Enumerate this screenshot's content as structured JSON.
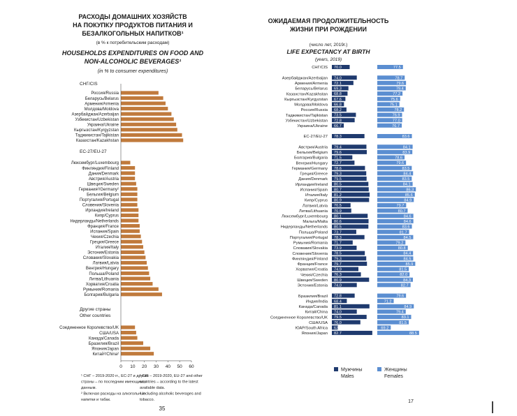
{
  "colors": {
    "food_bar": "#c07a3c",
    "male_bar": "#1f3a6e",
    "female_bar": "#5b8ed1",
    "text": "#1a1a1a",
    "grid": "#d8d8d8"
  },
  "left": {
    "title_ru": [
      "РАСХОДЫ ДОМАШНИХ ХОЗЯЙСТВ",
      "НА ПОКУПКУ ПРОДУКТОВ ПИТАНИЯ И",
      "БЕЗАЛКОГОЛЬНЫХ НАПИТКОВ¹"
    ],
    "subtitle_ru": "(в % к потребительским расходам)",
    "title_en": [
      "HOUSEHOLDS EXPENDITURES ON FOOD AND",
      "NON-ALCOHOLIC BEVERAGES¹"
    ],
    "subtitle_en": "(in % to consumer expenditures)",
    "footnote_ru": [
      "¹ СНГ – 2019-2020 гг., ЕС-27 и другие",
      "страны – по последним имеющимся",
      "данным.",
      "² Включая расходы на алкогольные",
      "напитки и табак."
    ],
    "footnote_en": [
      "¹ CIS – 2019-2020, EU-27 and other",
      "countries – according to the latest",
      "available data.",
      "² Including alcoholic beverages and",
      "tobacco."
    ],
    "page_number": "35"
  },
  "right": {
    "title_ru": [
      "ОЖИДАЕМАЯ ПРОДОЛЖИТЕЛЬНОСТЬ",
      "ЖИЗНИ ПРИ РОЖДЕНИИ"
    ],
    "subtitle_ru": "(число лет, 2019г.)",
    "title_en": "LIFE EXPECTANCY AT BIRTH",
    "subtitle_en": "(years, 2019)",
    "legend_male": [
      "Мужчины",
      "Males"
    ],
    "legend_female": [
      "Женщины",
      "Females"
    ],
    "page_number": "17"
  },
  "chart_data": [
    {
      "type": "bar",
      "orientation": "horizontal",
      "title": "HOUSEHOLDS EXPENDITURES ON FOOD AND NON-ALCOHOLIC BEVERAGES",
      "xlim": [
        0,
        60
      ],
      "xticks": [
        0,
        10,
        20,
        30,
        40,
        50,
        60
      ],
      "grid": false,
      "groups": [
        {
          "label": "СНГ/CIS",
          "items": [
            {
              "label": "Россия/Russia",
              "value": 32
            },
            {
              "label": "Беларусь/Belarus",
              "value": 36
            },
            {
              "label": "Армения/Armenia",
              "value": 38
            },
            {
              "label": "Молдова/Moldova",
              "value": 40
            },
            {
              "label": "Азербайджан/Azerbaijan",
              "value": 43
            },
            {
              "label": "Узбекистан/Uzbekistan",
              "value": 45
            },
            {
              "label": "Украина/Ukraine",
              "value": 47
            },
            {
              "label": "Кыргызстан/Kyrgyzstan",
              "value": 48
            },
            {
              "label": "Таджикистан/Tajikistan",
              "value": 52
            },
            {
              "label": "Казахстан/Kazakhstan",
              "value": 53
            }
          ]
        },
        {
          "label": "ЕС-27/EU-27",
          "items": [
            {
              "label": "Люксембург/Luxembourg",
              "value": 8
            },
            {
              "label": "Финляндия/Finland",
              "value": 12
            },
            {
              "label": "Дания/Denmark",
              "value": 12
            },
            {
              "label": "Австрия/Austria",
              "value": 12
            },
            {
              "label": "Швеция/Sweden",
              "value": 13
            },
            {
              "label": "Германия²/Germany²",
              "value": 14
            },
            {
              "label": "Бельгия/Belgium",
              "value": 14
            },
            {
              "label": "Португалия/Portugal",
              "value": 14
            },
            {
              "label": "Словения/Slovenia",
              "value": 14
            },
            {
              "label": "Ирландия/Ireland",
              "value": 15
            },
            {
              "label": "Кипр/Cyprus",
              "value": 15
            },
            {
              "label": "Нидерланды/Netherlands",
              "value": 15
            },
            {
              "label": "Франция/France",
              "value": 16
            },
            {
              "label": "Испания/Spain",
              "value": 16
            },
            {
              "label": "Чехия/Czechia",
              "value": 17
            },
            {
              "label": "Греция/Greece",
              "value": 18
            },
            {
              "label": "Италия/Italy",
              "value": 19
            },
            {
              "label": "Эстония/Estonia",
              "value": 20
            },
            {
              "label": "Словакия/Slovakia",
              "value": 21
            },
            {
              "label": "Латвия/Latvia",
              "value": 22
            },
            {
              "label": "Венгрия/Hungary",
              "value": 23
            },
            {
              "label": "Польша/Poland",
              "value": 24
            },
            {
              "label": "Литва/Lithuania",
              "value": 25
            },
            {
              "label": "Хорватия/Croatia",
              "value": 27
            },
            {
              "label": "Румыния/Romania",
              "value": 32
            },
            {
              "label": "Болгария/Bulgaria",
              "value": 35
            }
          ]
        },
        {
          "label": "Другие страны/ Other countries",
          "items": [
            {
              "label": "Соединенное Королевство/UK",
              "value": 12
            },
            {
              "label": "США/USA",
              "value": 13
            },
            {
              "label": "Канада/Canada",
              "value": 14
            },
            {
              "label": "Бразилия/Brazil",
              "value": 19
            },
            {
              "label": "Япония/Japan",
              "value": 25
            },
            {
              "label": "Китай²/China²",
              "value": 28
            }
          ]
        }
      ]
    },
    {
      "type": "bar",
      "orientation": "horizontal",
      "title": "LIFE EXPECTANCY AT BIRTH",
      "series": [
        {
          "name": "Мужчины Males"
        },
        {
          "name": "Женщины Females"
        }
      ],
      "grid": false,
      "legend": "bottom",
      "rows": [
        {
          "label": "СНГ/CIS",
          "male": 70.0,
          "female": 77.5,
          "type": "total"
        },
        {
          "type": "gap"
        },
        {
          "label": "Азербайджан/Azerbaijan",
          "male": 74.0,
          "female": 78.7
        },
        {
          "label": "Армения/Armenia",
          "male": 72.1,
          "female": 79.6
        },
        {
          "label": "Беларусь/Belarus",
          "male": 69.3,
          "female": 79.4
        },
        {
          "label": "Казахстан/Kazakhstan",
          "male": 68.8,
          "female": 77.2
        },
        {
          "label": "Кыргызстан/Kyrgyzstan",
          "male": 67.6,
          "female": 75.6
        },
        {
          "label": "Молдова/Moldova",
          "male": 66.8,
          "female": 75.1
        },
        {
          "label": "Россия/Russia",
          "male": 68.2,
          "female": 78.2
        },
        {
          "label": "Таджикистан/Tajikistan",
          "male": 73.5,
          "female": 76.9
        },
        {
          "label": "Узбекистан/Uzbekistan",
          "male": 72.8,
          "female": 77.0
        },
        {
          "label": "Украина/Ukraine",
          "male": 66.7,
          "female": 76.7
        },
        {
          "type": "gap"
        },
        {
          "label": "ЕС-27/EU-27",
          "male": 78.3,
          "female": 83.6,
          "type": "total"
        },
        {
          "type": "gap"
        },
        {
          "label": "Австрия/Austria",
          "male": 79.4,
          "female": 84.1
        },
        {
          "label": "Бельгия/Belgium",
          "male": 79.6,
          "female": 83.9
        },
        {
          "label": "Болгария/Bulgaria",
          "male": 71.5,
          "female": 78.6
        },
        {
          "label": "Венгрия/Hungary",
          "male": 72.7,
          "female": 79.6
        },
        {
          "label": "Германия/Germany",
          "male": 78.6,
          "female": 83.5
        },
        {
          "label": "Греция/Greece",
          "male": 79.3,
          "female": 84.4
        },
        {
          "label": "Дания/Denmark",
          "male": 79.5,
          "female": 83.5
        },
        {
          "label": "Ирландия/Ireland",
          "male": 80.5,
          "female": 84.1
        },
        {
          "label": "Испания/Spain",
          "male": 80.7,
          "female": 86.3
        },
        {
          "label": "Италия/Italy",
          "male": 81.2,
          "female": 85.6
        },
        {
          "label": "Кипр/Cyprus",
          "male": 80.9,
          "female": 84.9
        },
        {
          "label": "Латвия/Latvia",
          "male": 70.5,
          "female": 79.7
        },
        {
          "label": "Литва/Lithuania",
          "male": 70.9,
          "female": 80.7
        },
        {
          "label": "Люксембург/Luxembourg",
          "male": 80.1,
          "female": 84.6
        },
        {
          "label": "Мальта/Malta",
          "male": 80.6,
          "female": 84.6
        },
        {
          "label": "Нидерланды/Netherlands",
          "male": 80.5,
          "female": 83.6
        },
        {
          "label": "Польша/Poland",
          "male": 73.7,
          "female": 81.7
        },
        {
          "label": "Португалия/Portugal",
          "male": 78.3,
          "female": 84.5
        },
        {
          "label": "Румыния/Romania",
          "male": 71.7,
          "female": 79.2
        },
        {
          "label": "Словакия/Slovakia",
          "male": 73.9,
          "female": 80.8
        },
        {
          "label": "Словения/Slovenia",
          "male": 78.5,
          "female": 84.4
        },
        {
          "label": "Финляндия/Finland",
          "male": 79.3,
          "female": 84.5
        },
        {
          "label": "Франция/France",
          "male": 79.7,
          "female": 85.9
        },
        {
          "label": "Хорватия/Croatia",
          "male": 74.9,
          "female": 81.5
        },
        {
          "label": "Чехия/Czechia",
          "male": 76.3,
          "female": 82.0
        },
        {
          "label": "Швеция/Sweden",
          "male": 80.9,
          "female": 84.3
        },
        {
          "label": "Эстония/Estonia",
          "male": 74.0,
          "female": 82.7
        },
        {
          "type": "gap"
        },
        {
          "label": "Бразилия/Brazil",
          "male": 72.8,
          "female": 79.6
        },
        {
          "label": "Индия/India",
          "male": 68.4,
          "female": 71.2
        },
        {
          "label": "Канада/Canada",
          "male": 81.1,
          "female": 84.9
        },
        {
          "label": "Китай/China",
          "male": 74.0,
          "female": 79.4
        },
        {
          "label": "Соединенное Королевство/UK",
          "male": 79.5,
          "female": 83.1
        },
        {
          "label": "США/USA",
          "male": 76.0,
          "female": 81.5
        },
        {
          "label": "ЮАР/South Africa",
          "male": 63.4,
          "female": 69.2
        },
        {
          "label": "Япония/Japan",
          "male": 82.7,
          "female": 88.5
        }
      ]
    }
  ]
}
